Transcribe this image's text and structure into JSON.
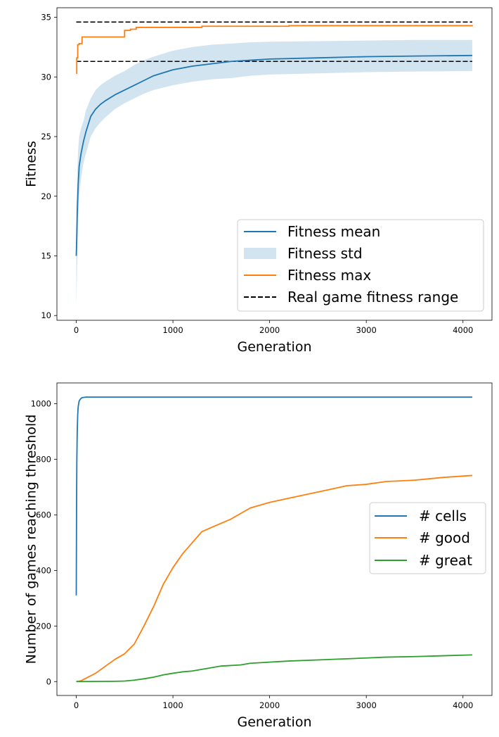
{
  "chart_data": [
    {
      "type": "line",
      "xlabel": "Generation",
      "ylabel": "Fitness",
      "xlim": [
        -200,
        4300
      ],
      "ylim": [
        9.6,
        35.8
      ],
      "xticks": [
        0,
        1000,
        2000,
        3000,
        4000
      ],
      "yticks": [
        10,
        15,
        20,
        25,
        30,
        35
      ],
      "legend_position": "lower right",
      "series": [
        {
          "name": "Fitness mean",
          "kind": "line",
          "color": "#1f77b4",
          "x": [
            0,
            5,
            10,
            20,
            30,
            50,
            75,
            100,
            150,
            200,
            250,
            300,
            400,
            500,
            600,
            700,
            800,
            1000,
            1200,
            1400,
            1600,
            1800,
            2000,
            2500,
            3000,
            3500,
            4096
          ],
          "y": [
            15.0,
            16.6,
            18.5,
            21.0,
            22.5,
            23.6,
            24.6,
            25.4,
            26.7,
            27.3,
            27.7,
            28.0,
            28.5,
            28.9,
            29.3,
            29.7,
            30.1,
            30.6,
            30.9,
            31.1,
            31.3,
            31.4,
            31.5,
            31.6,
            31.7,
            31.75,
            31.8
          ]
        },
        {
          "name": "Fitness std",
          "kind": "band",
          "color": "#1f77b4",
          "opacity": 0.2,
          "x": [
            0,
            5,
            10,
            20,
            30,
            50,
            75,
            100,
            150,
            200,
            250,
            300,
            400,
            500,
            600,
            700,
            800,
            1000,
            1200,
            1400,
            1600,
            1800,
            2000,
            2500,
            3000,
            3500,
            4096
          ],
          "lower": [
            10.8,
            12.5,
            14.5,
            18.0,
            20.0,
            21.5,
            22.8,
            23.6,
            25.0,
            25.7,
            26.2,
            26.6,
            27.3,
            27.8,
            28.2,
            28.6,
            28.9,
            29.3,
            29.6,
            29.8,
            29.9,
            30.1,
            30.2,
            30.3,
            30.4,
            30.45,
            30.5
          ],
          "upper": [
            19.2,
            20.5,
            22.0,
            24.0,
            25.0,
            25.7,
            26.3,
            27.2,
            28.2,
            28.9,
            29.3,
            29.6,
            30.1,
            30.5,
            31.0,
            31.4,
            31.7,
            32.2,
            32.5,
            32.7,
            32.8,
            32.9,
            32.95,
            33.0,
            33.05,
            33.1,
            33.1
          ]
        },
        {
          "name": "Fitness max",
          "kind": "step",
          "color": "#ff7f0e",
          "x": [
            0,
            5,
            15,
            30,
            60,
            480,
            500,
            560,
            620,
            1300,
            2200,
            4096
          ],
          "y": [
            30.3,
            31.6,
            32.7,
            32.8,
            33.35,
            33.35,
            33.9,
            34.0,
            34.15,
            34.25,
            34.3,
            34.35
          ]
        },
        {
          "name": "Real game fitness range",
          "kind": "hline",
          "color": "#000000",
          "dashed": true,
          "x": [
            0,
            4096
          ],
          "values": [
            31.3,
            34.6
          ]
        }
      ]
    },
    {
      "type": "line",
      "xlabel": "Generation",
      "ylabel": "Number of games reaching threshold",
      "xlim": [
        -200,
        4300
      ],
      "ylim": [
        -50,
        1075
      ],
      "xticks": [
        0,
        1000,
        2000,
        3000,
        4000
      ],
      "yticks": [
        0,
        200,
        400,
        600,
        800,
        1000
      ],
      "legend_position": "center right",
      "series": [
        {
          "name": "# cells",
          "color": "#1f77b4",
          "x": [
            0,
            3,
            6,
            10,
            15,
            20,
            30,
            45,
            60,
            100,
            4096
          ],
          "y": [
            310,
            620,
            800,
            900,
            960,
            990,
            1010,
            1018,
            1022,
            1024,
            1024
          ]
        },
        {
          "name": "# good",
          "color": "#ff7f0e",
          "x": [
            0,
            50,
            100,
            200,
            300,
            400,
            500,
            600,
            700,
            800,
            900,
            1000,
            1100,
            1200,
            1300,
            1400,
            1500,
            1600,
            1700,
            1800,
            2000,
            2200,
            2400,
            2600,
            2800,
            3000,
            3200,
            3500,
            3800,
            4096
          ],
          "y": [
            0,
            3,
            12,
            30,
            55,
            80,
            100,
            135,
            200,
            270,
            350,
            410,
            460,
            500,
            540,
            555,
            570,
            585,
            605,
            625,
            645,
            660,
            675,
            690,
            705,
            710,
            720,
            725,
            735,
            742
          ]
        },
        {
          "name": "# great",
          "color": "#2ca02c",
          "x": [
            0,
            400,
            500,
            600,
            700,
            800,
            900,
            1000,
            1100,
            1200,
            1300,
            1400,
            1500,
            1700,
            1800,
            2000,
            2200,
            2500,
            2800,
            3000,
            3200,
            3500,
            3800,
            4096
          ],
          "y": [
            0,
            1,
            2,
            5,
            10,
            16,
            24,
            30,
            35,
            38,
            44,
            50,
            56,
            60,
            66,
            70,
            74,
            78,
            82,
            85,
            88,
            90,
            93,
            96
          ]
        }
      ]
    }
  ]
}
